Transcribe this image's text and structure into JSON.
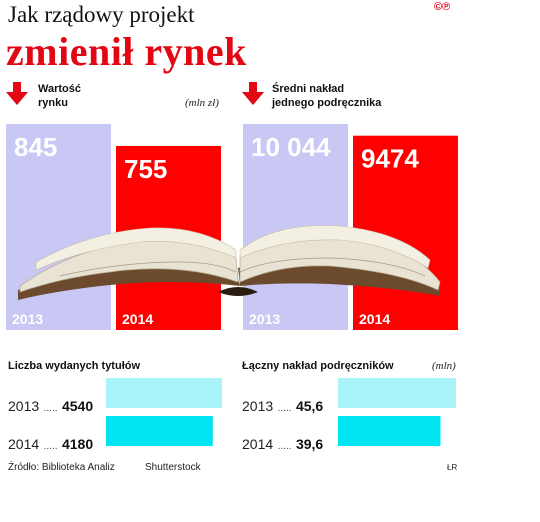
{
  "header": {
    "title_line1": "Jak rządowy projekt",
    "title_line2": "zmienił rynek",
    "copyright": "©℗"
  },
  "chart_data": [
    {
      "type": "bar",
      "title": "Wartość rynku",
      "unit": "(mln zł)",
      "trend": "down",
      "categories": [
        "2013",
        "2014"
      ],
      "values": [
        845,
        755
      ],
      "value_labels": [
        "845",
        "755"
      ],
      "colors": [
        "#c9c7f4",
        "#ff0000"
      ]
    },
    {
      "type": "bar",
      "title": "Średni nakład jednego podręcznika",
      "trend": "down",
      "categories": [
        "2013",
        "2014"
      ],
      "values": [
        10044,
        9474
      ],
      "value_labels": [
        "10 044",
        "9474"
      ],
      "colors": [
        "#c9c7f4",
        "#ff0000"
      ]
    },
    {
      "type": "bar",
      "orientation": "horizontal",
      "title": "Liczba wydanych tytułów",
      "categories": [
        "2013",
        "2014"
      ],
      "values": [
        4540,
        4180
      ],
      "value_labels": [
        "4540",
        "4180"
      ],
      "xlim": [
        0,
        4540
      ],
      "colors": [
        "#a8f4f8",
        "#00e4f3"
      ]
    },
    {
      "type": "bar",
      "orientation": "horizontal",
      "title": "Łączny nakład podręczników",
      "unit": "(mln)",
      "categories": [
        "2013",
        "2014"
      ],
      "values": [
        45.6,
        39.6
      ],
      "value_labels": [
        "45,6",
        "39,6"
      ],
      "xlim": [
        0,
        45.6
      ],
      "colors": [
        "#a8f4f8",
        "#00e4f3"
      ]
    }
  ],
  "top": {
    "left": {
      "label_l1": "Wartość",
      "label_l2": "rynku"
    },
    "right": {
      "label_l1": "Średni nakład",
      "label_l2": "jednego podręcznika"
    }
  },
  "bottom": {
    "left_title": "Liczba wydanych tytułów",
    "right_title": "Łączny nakład podręczników",
    "dots": "....."
  },
  "footer": {
    "source": "Źródło: Biblioteka Analiz",
    "photo": "Shutterstock",
    "initials": "ŁR"
  },
  "icons": {
    "trend": "down-arrow-icon",
    "image": "open-book-illustration"
  }
}
